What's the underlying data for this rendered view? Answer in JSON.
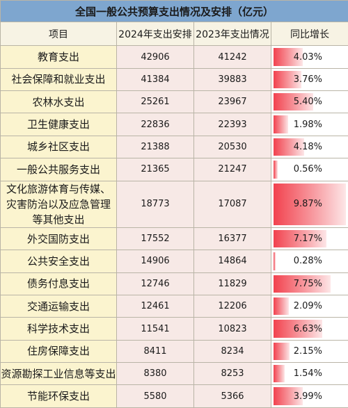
{
  "title": "全国一般公共预算支出情况及安排（亿元）",
  "headers": [
    "项目",
    "2024年支出安排",
    "2023年支出情况",
    "同比增长"
  ],
  "rows": [
    {
      "item": "教育支出",
      "y2024": "42906",
      "y2023": "41242",
      "growth": "4.03%",
      "growth_value": 4.03
    },
    {
      "item": "社会保障和就业支出",
      "y2024": "41384",
      "y2023": "39883",
      "growth": "3.76%",
      "growth_value": 3.76
    },
    {
      "item": "农林水支出",
      "y2024": "25261",
      "y2023": "23967",
      "growth": "5.40%",
      "growth_value": 5.4
    },
    {
      "item": "卫生健康支出",
      "y2024": "22836",
      "y2023": "22393",
      "growth": "1.98%",
      "growth_value": 1.98
    },
    {
      "item": "城乡社区支出",
      "y2024": "21388",
      "y2023": "20530",
      "growth": "4.18%",
      "growth_value": 4.18
    },
    {
      "item": "一般公共服务支出",
      "y2024": "21365",
      "y2023": "21247",
      "growth": "0.56%",
      "growth_value": 0.56
    },
    {
      "item": "文化旅游体育与传媒、灾害防治以及应急管理等其他支出",
      "y2024": "18773",
      "y2023": "17087",
      "growth": "9.87%",
      "growth_value": 9.87
    },
    {
      "item": "外交国防支出",
      "y2024": "17552",
      "y2023": "16377",
      "growth": "7.17%",
      "growth_value": 7.17
    },
    {
      "item": "公共安全支出",
      "y2024": "14906",
      "y2023": "14864",
      "growth": "0.28%",
      "growth_value": 0.28
    },
    {
      "item": "债务付息支出",
      "y2024": "12746",
      "y2023": "11829",
      "growth": "7.75%",
      "growth_value": 7.75
    },
    {
      "item": "交通运输支出",
      "y2024": "12461",
      "y2023": "12206",
      "growth": "2.09%",
      "growth_value": 2.09
    },
    {
      "item": "科学技术支出",
      "y2024": "11541",
      "y2023": "10823",
      "growth": "6.63%",
      "growth_value": 6.63
    },
    {
      "item": "住房保障支出",
      "y2024": "8411",
      "y2023": "8234",
      "growth": "2.15%",
      "growth_value": 2.15
    },
    {
      "item": "资源勘探工业信息等支出",
      "y2024": "8380",
      "y2023": "8253",
      "growth": "1.54%",
      "growth_value": 1.54
    },
    {
      "item": "节能环保支出",
      "y2024": "5580",
      "y2023": "5366",
      "growth": "3.99%",
      "growth_value": 3.99
    }
  ],
  "colors": {
    "title_bg": "#7ea6cf",
    "item_bg": "#fbf4cf",
    "number_bg": "#f7e9e6",
    "bar_start": "#f2424e",
    "bar_end": "#fde6e7"
  }
}
